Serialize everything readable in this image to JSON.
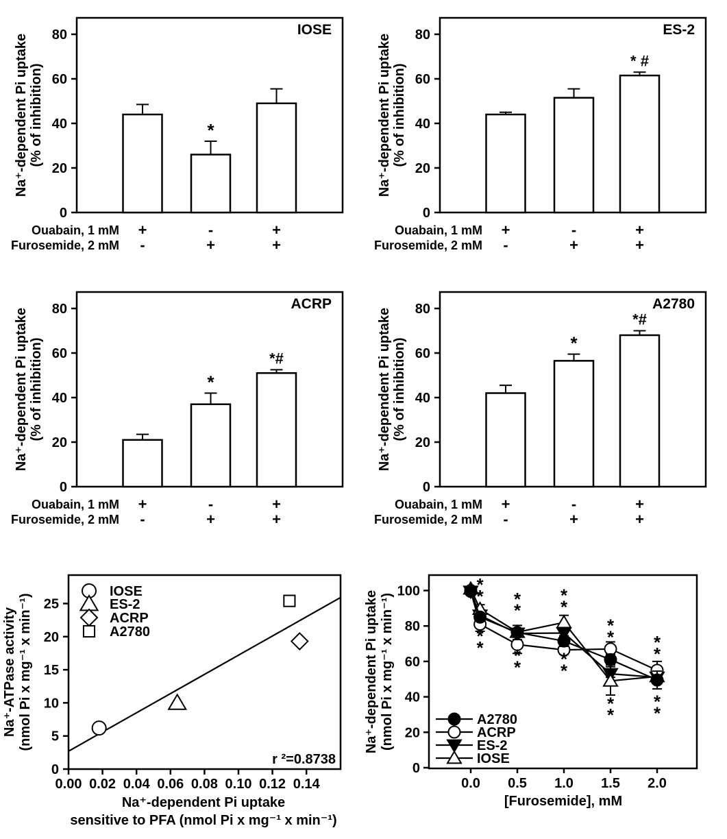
{
  "figure_background": "#ffffff",
  "ink_color": "#000000",
  "chart_data": [
    {
      "id": "iose-inhibition",
      "type": "bar",
      "title": "IOSE",
      "ylabel_lines": [
        "Na⁺-dependent Pi uptake",
        "(% of inhibition)"
      ],
      "yticks": [
        0,
        20,
        40,
        60,
        80
      ],
      "ylim": [
        0,
        87
      ],
      "values": [
        44,
        26,
        49
      ],
      "errors": [
        4.5,
        6,
        6.5
      ],
      "bar_annotations": [
        "",
        "*",
        ""
      ],
      "treatment_rows": [
        {
          "label": "Ouabain, 1 mM",
          "signs": [
            "+",
            "-",
            "+"
          ]
        },
        {
          "label": "Furosemide, 2 mM",
          "signs": [
            "-",
            "+",
            "+"
          ]
        }
      ]
    },
    {
      "id": "es2-inhibition",
      "type": "bar",
      "title": "ES-2",
      "ylabel_lines": [
        "Na⁺-dependent Pi uptake",
        "(% of inhibition)"
      ],
      "yticks": [
        0,
        20,
        40,
        60,
        80
      ],
      "ylim": [
        0,
        87
      ],
      "values": [
        44,
        51.5,
        61.5
      ],
      "errors": [
        1,
        4,
        1.5
      ],
      "bar_annotations": [
        "",
        "",
        "* #"
      ],
      "treatment_rows": [
        {
          "label": "Ouabain, 1 mM",
          "signs": [
            "+",
            "-",
            "+"
          ]
        },
        {
          "label": "Furosemide, 2 mM",
          "signs": [
            "-",
            "+",
            "+"
          ]
        }
      ]
    },
    {
      "id": "acrp-inhibition",
      "type": "bar",
      "title": "ACRP",
      "ylabel_lines": [
        "Na⁺-dependent Pi uptake",
        "(% of inhibition)"
      ],
      "yticks": [
        0,
        20,
        40,
        60,
        80
      ],
      "ylim": [
        0,
        87
      ],
      "values": [
        21,
        37,
        51
      ],
      "errors": [
        2.5,
        5,
        1.5
      ],
      "bar_annotations": [
        "",
        "*",
        "*#"
      ],
      "treatment_rows": [
        {
          "label": "Ouabain, 1 mM",
          "signs": [
            "+",
            "-",
            "+"
          ]
        },
        {
          "label": "Furosemide, 2 mM",
          "signs": [
            "-",
            "+",
            "+"
          ]
        }
      ]
    },
    {
      "id": "a2780-inhibition",
      "type": "bar",
      "title": "A2780",
      "ylabel_lines": [
        "Na⁺-dependent Pi uptake",
        "(% of inhibition)"
      ],
      "yticks": [
        0,
        20,
        40,
        60,
        80
      ],
      "ylim": [
        0,
        87
      ],
      "values": [
        42,
        56.5,
        68
      ],
      "errors": [
        3.5,
        3,
        2
      ],
      "bar_annotations": [
        "",
        "*",
        "*#"
      ],
      "treatment_rows": [
        {
          "label": "Ouabain, 1 mM",
          "signs": [
            "+",
            "-",
            "+"
          ]
        },
        {
          "label": "Furosemide, 2 mM",
          "signs": [
            "-",
            "+",
            "+"
          ]
        }
      ]
    },
    {
      "id": "atpase-uptake-correlation",
      "type": "scatter",
      "xlabel_lines": [
        "Na⁺-dependent Pi uptake",
        "sensitive to PFA (nmol Pi x mg⁻¹ x min⁻¹)"
      ],
      "ylabel_lines": [
        "Na⁺-ATPase activity",
        "(nmol Pi x mg⁻¹ x min⁻¹)"
      ],
      "xtick_labels": [
        "0.00",
        "0.02",
        "0.04",
        "0.06",
        "0.08",
        "0.10",
        "0.12",
        "0.14"
      ],
      "xtick_values": [
        0,
        0.02,
        0.04,
        0.06,
        0.08,
        0.1,
        0.12,
        0.14
      ],
      "yticks": [
        0,
        5,
        10,
        15,
        20,
        25
      ],
      "xlim": [
        0,
        0.16
      ],
      "ylim": [
        0,
        29
      ],
      "points": [
        {
          "label": "IOSE",
          "marker": "circle",
          "x": 0.018,
          "y": 6.2
        },
        {
          "label": "ES-2",
          "marker": "triangle-up",
          "x": 0.064,
          "y": 10.0
        },
        {
          "label": "ACRP",
          "marker": "diamond",
          "x": 0.136,
          "y": 19.3
        },
        {
          "label": "A2780",
          "marker": "square",
          "x": 0.13,
          "y": 25.4
        }
      ],
      "regression_line": {
        "x1": 0,
        "y1": 2.7,
        "x2": 0.16,
        "y2": 25.9
      },
      "annotation": "r ²=0.8738",
      "legend": [
        {
          "label": "IOSE",
          "marker": "circle"
        },
        {
          "label": "ES-2",
          "marker": "triangle-up"
        },
        {
          "label": "ACRP",
          "marker": "diamond"
        },
        {
          "label": "A2780",
          "marker": "square"
        }
      ]
    },
    {
      "id": "furosemide-dose-response",
      "type": "line",
      "xlabel": "[Furosemide], mM",
      "ylabel_lines": [
        "Na⁺-dependent Pi uptake",
        "(nmol Pi x mg⁻¹ x min⁻¹)"
      ],
      "xtick_labels": [
        "0.0",
        "0.5",
        "1.0",
        "1.5",
        "2.0"
      ],
      "xtick_values": [
        0,
        0.5,
        1.0,
        1.5,
        2.0
      ],
      "yticks": [
        0,
        20,
        40,
        60,
        80,
        100
      ],
      "xlim": [
        -0.45,
        2.45
      ],
      "ylim": [
        0,
        109
      ],
      "x": [
        0,
        0.1,
        0.5,
        1.0,
        1.5,
        2.0
      ],
      "series": [
        {
          "name": "A2780",
          "marker": "circle-filled",
          "values": [
            100,
            85,
            76.3,
            71.5,
            61,
            49.5
          ],
          "errors": [
            0,
            2,
            4,
            3,
            3,
            5
          ]
        },
        {
          "name": "ACRP",
          "marker": "circle-open",
          "values": [
            99.5,
            81,
            69.5,
            66.5,
            67,
            55
          ],
          "errors": [
            0,
            4,
            5,
            2.5,
            4,
            5
          ]
        },
        {
          "name": "ES-2",
          "marker": "triangle-down-filled",
          "values": [
            99.5,
            86,
            75.8,
            76,
            53,
            51
          ],
          "errors": [
            2,
            2,
            0,
            2,
            2,
            0
          ]
        },
        {
          "name": "IOSE",
          "marker": "triangle-up-open",
          "values": [
            101,
            89.5,
            76.5,
            82,
            49,
            51.5
          ],
          "errors": [
            1,
            2.5,
            0,
            4,
            8,
            0
          ]
        }
      ],
      "significance_symbol": "*",
      "significance_marks": [
        {
          "x": 0.1,
          "above": [
            104,
            97.5
          ],
          "below": [
            75,
            68.5
          ]
        },
        {
          "x": 0.5,
          "above": [
            96,
            89.5
          ],
          "below": [
            64,
            57.5
          ]
        },
        {
          "x": 1.0,
          "above": [
            98,
            91.5
          ],
          "below": [
            62,
            55.5
          ]
        },
        {
          "x": 1.5,
          "above": [
            81,
            74.5
          ],
          "below": [
            37,
            30.5
          ]
        },
        {
          "x": 2.0,
          "above": [
            71.5,
            65
          ],
          "below": [
            38,
            31.5
          ]
        }
      ]
    }
  ]
}
